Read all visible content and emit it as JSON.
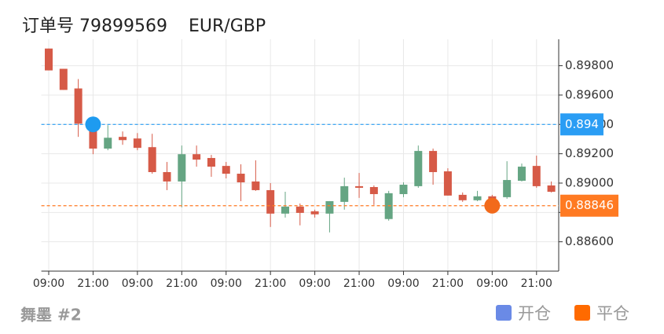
{
  "header": {
    "order": "订单号 79899569",
    "symbol": "EUR/GBP"
  },
  "chart_data": {
    "type": "candlestick",
    "categories": [
      "09:00",
      null,
      null,
      "21:00",
      null,
      null,
      "09:00",
      null,
      null,
      "21:00",
      null,
      null,
      "09:00",
      null,
      null,
      "21:00",
      null,
      null,
      "09:00",
      null,
      null,
      "21:00",
      null,
      null,
      "09:00",
      null,
      null,
      "21:00",
      null,
      null,
      "09:00",
      null,
      null,
      "21:00",
      null
    ],
    "open": [
      0.89917,
      0.89779,
      0.89645,
      0.89405,
      0.89235,
      0.89315,
      0.89304,
      0.89245,
      0.89075,
      0.89011,
      0.89197,
      0.89171,
      0.89117,
      0.89064,
      0.89011,
      0.88952,
      0.88792,
      0.8884,
      0.88808,
      0.88792,
      0.88872,
      0.88979,
      0.88973,
      0.88755,
      0.88925,
      0.88979,
      0.89219,
      0.8908,
      0.8892,
      0.88883,
      0.8891,
      0.88904,
      0.89016,
      0.89117,
      0.88984
    ],
    "high": [
      0.89917,
      0.89779,
      0.89709,
      0.89405,
      0.89395,
      0.89352,
      0.89341,
      0.89336,
      0.89144,
      0.89256,
      0.89256,
      0.89192,
      0.89144,
      0.89128,
      0.89155,
      0.89,
      0.88941,
      0.88861,
      0.88819,
      0.88877,
      0.89037,
      0.89069,
      0.88984,
      0.88947,
      0.89005,
      0.89256,
      0.89235,
      0.89101,
      0.88936,
      0.88947,
      0.8892,
      0.89149,
      0.89133,
      0.89187,
      0.89011
    ],
    "low": [
      0.89768,
      0.89635,
      0.89315,
      0.89197,
      0.89224,
      0.89261,
      0.89224,
      0.89064,
      0.88952,
      0.88835,
      0.89112,
      0.89043,
      0.89032,
      0.88877,
      0.88947,
      0.88701,
      0.88765,
      0.88712,
      0.88765,
      0.88664,
      0.88819,
      0.88899,
      0.88851,
      0.88744,
      0.88904,
      0.88968,
      0.88989,
      0.88915,
      0.88872,
      0.88877,
      0.88861,
      0.88893,
      0.89011,
      0.88968,
      0.88936
    ],
    "close": [
      0.89768,
      0.89635,
      0.89405,
      0.89235,
      0.89309,
      0.89293,
      0.8924,
      0.89075,
      0.89011,
      0.89197,
      0.8916,
      0.89112,
      0.89064,
      0.89005,
      0.88952,
      0.88792,
      0.8884,
      0.88797,
      0.88787,
      0.88877,
      0.88979,
      0.88968,
      0.88925,
      0.88931,
      0.88989,
      0.89219,
      0.89075,
      0.88915,
      0.88883,
      0.8891,
      0.88889,
      0.89021,
      0.89112,
      0.88979,
      0.88941
    ],
    "up_color": "#65a583",
    "down_color": "#d65a47",
    "ylim": [
      0.884,
      0.8998
    ],
    "yticks": [
      {
        "value": 0.886,
        "label": "0.88600"
      },
      {
        "value": 0.888,
        "label": "0.88800"
      },
      {
        "value": 0.89,
        "label": "0.89000"
      },
      {
        "value": 0.892,
        "label": "0.89200"
      },
      {
        "value": 0.894,
        "label": "0.89400"
      },
      {
        "value": 0.896,
        "label": "0.89600"
      },
      {
        "value": 0.898,
        "label": "0.89800"
      }
    ],
    "grid": true,
    "lines": [
      {
        "value": 0.894,
        "color": "#2a9df4"
      },
      {
        "value": 0.88846,
        "color": "#ff7a22"
      }
    ],
    "markers": [
      {
        "x": 3,
        "value": 0.894,
        "color": "#1e9bf0"
      },
      {
        "x": 30,
        "value": 0.88846,
        "color": "#f26a1b"
      }
    ],
    "legend": [
      {
        "name": "开仓",
        "color": "#6a8ae6"
      },
      {
        "name": "平仓",
        "color": "#ff6a00"
      }
    ]
  },
  "footer": {
    "author": "舞墨 #2"
  }
}
